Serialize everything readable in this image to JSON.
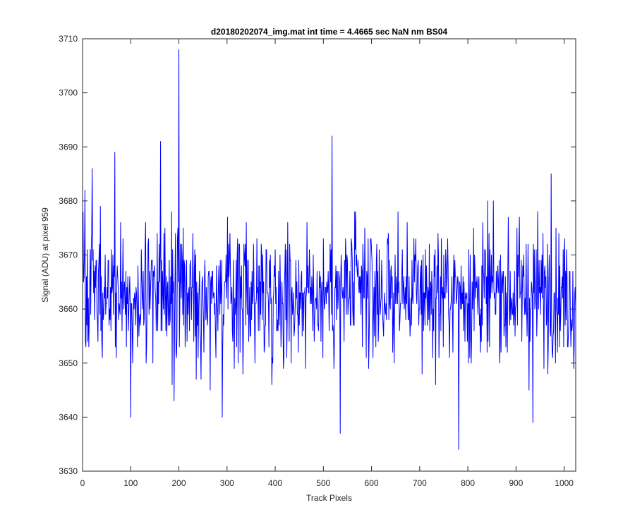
{
  "chart_data": {
    "type": "line",
    "title": "d20180202074_img.mat int time = 4.4665 sec  NaN nm BS04",
    "xlabel": "Track Pixels",
    "ylabel": "Signal (ADU) at pixel 959",
    "xlim": [
      0,
      1024
    ],
    "ylim": [
      3630,
      3710
    ],
    "xticks": [
      0,
      100,
      200,
      300,
      400,
      500,
      600,
      700,
      800,
      900,
      1000
    ],
    "yticks": [
      3630,
      3640,
      3650,
      3660,
      3670,
      3680,
      3690,
      3700,
      3710
    ],
    "grid": false,
    "legend": "none",
    "series": [
      {
        "color": "#0000ff",
        "x_start": 1,
        "x_step": 1,
        "baseline": 3663,
        "spread_sd": 8.5,
        "count": 1024,
        "values_summary": "noisy signal fluctuating between about 3645 and 3685",
        "highlights": [
          {
            "x": 1,
            "y": 3678
          },
          {
            "x": 20,
            "y": 3686
          },
          {
            "x": 67,
            "y": 3689
          },
          {
            "x": 100,
            "y": 3640
          },
          {
            "x": 162,
            "y": 3691
          },
          {
            "x": 190,
            "y": 3643
          },
          {
            "x": 200,
            "y": 3708
          },
          {
            "x": 290,
            "y": 3640
          },
          {
            "x": 518,
            "y": 3692
          },
          {
            "x": 535,
            "y": 3637
          },
          {
            "x": 781,
            "y": 3634
          },
          {
            "x": 935,
            "y": 3639
          },
          {
            "x": 973,
            "y": 3685
          },
          {
            "x": 1020,
            "y": 3649
          }
        ]
      }
    ]
  },
  "colors": {
    "line": "#0000ff",
    "axes": "#262626",
    "background": "#ffffff"
  }
}
